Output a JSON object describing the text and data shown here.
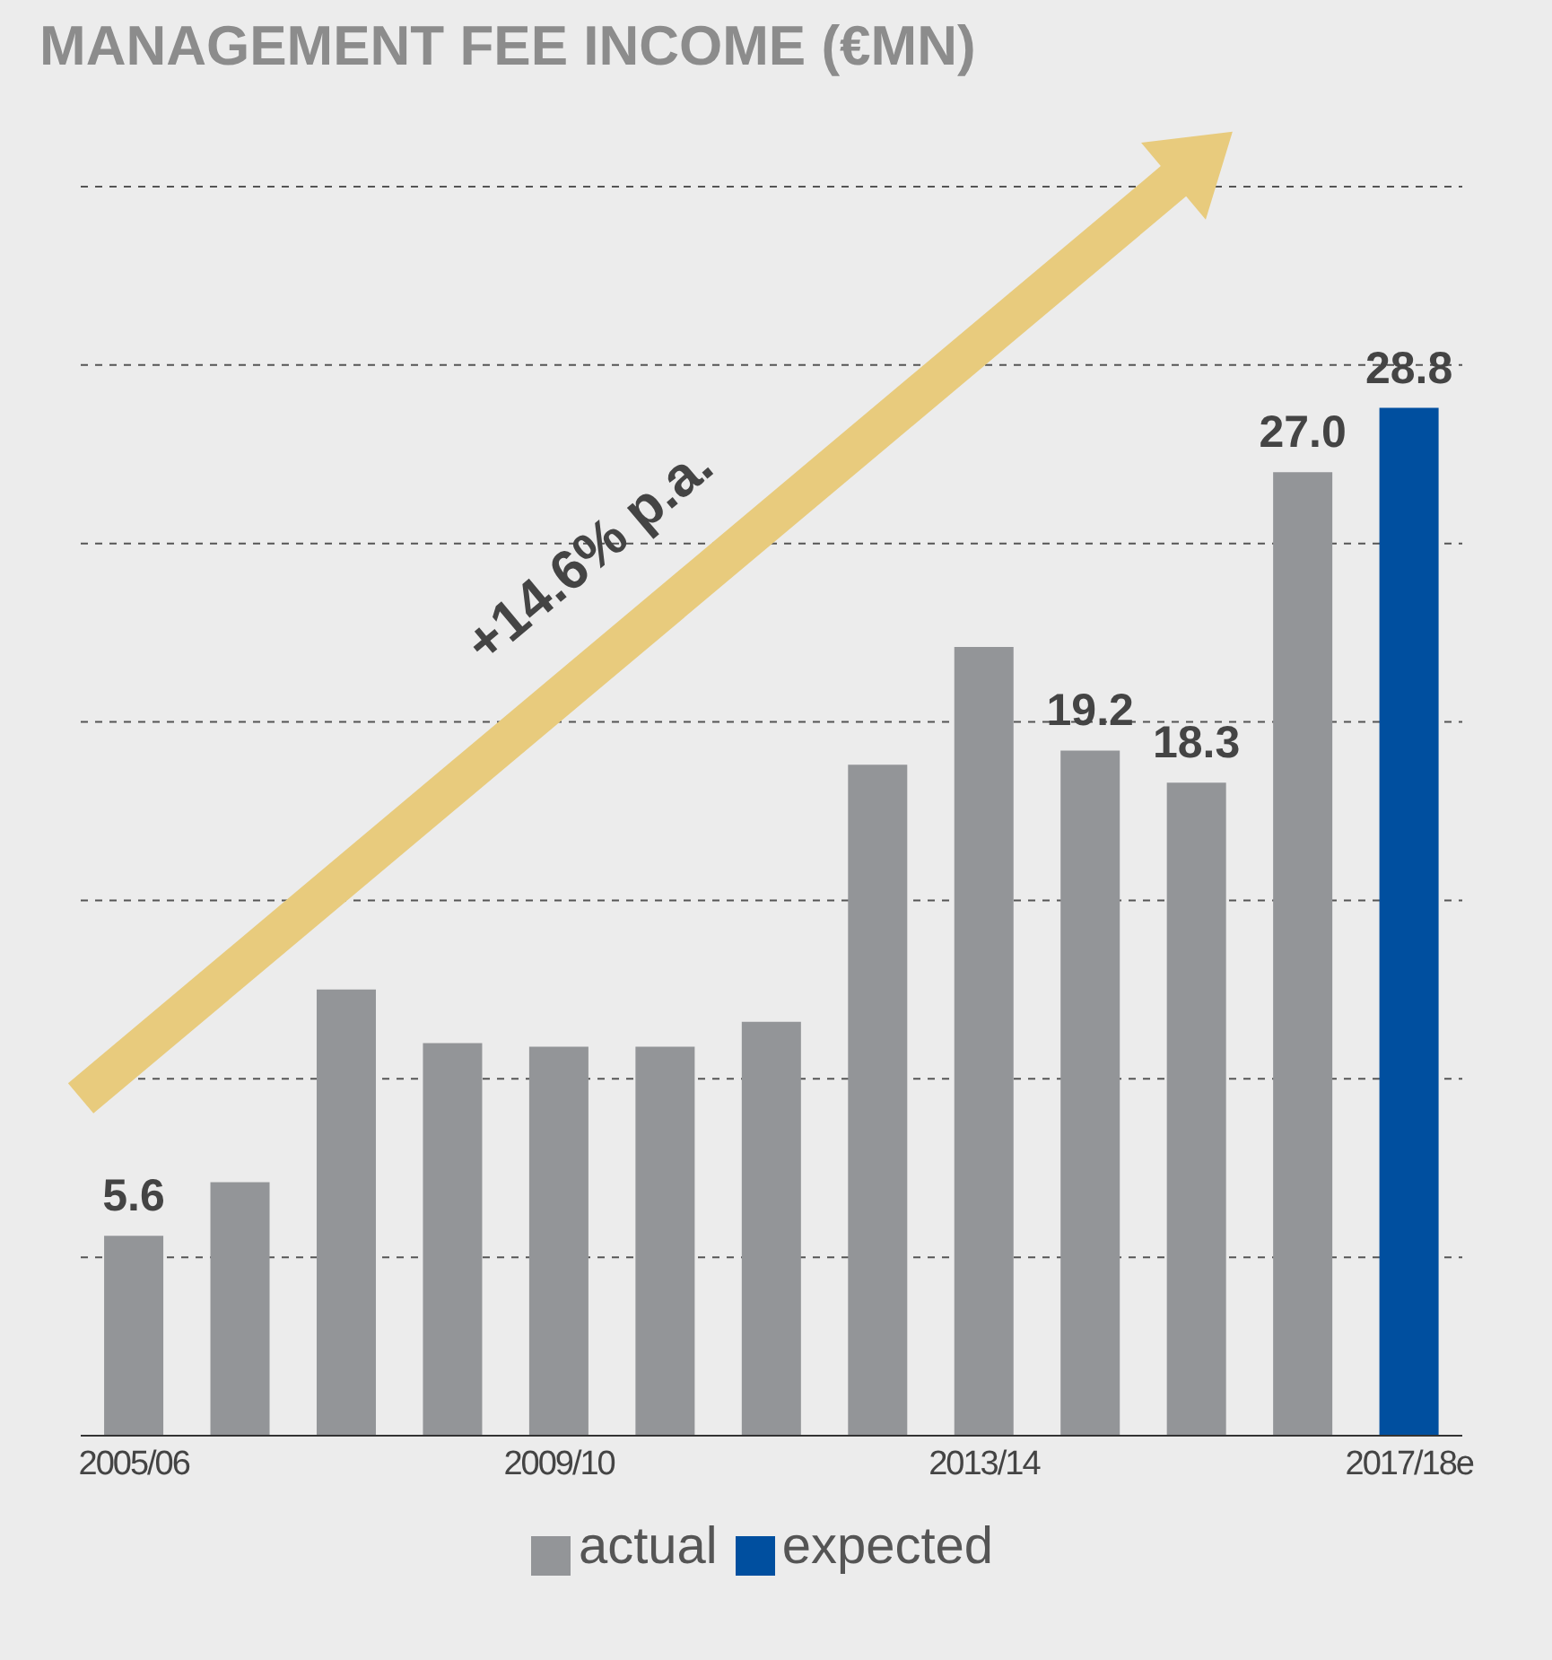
{
  "chart_data": {
    "type": "bar",
    "title": "MANAGEMENT FEE INCOME (€MN)",
    "categories": [
      "2005/06",
      null,
      null,
      null,
      "2009/10",
      null,
      null,
      null,
      "2013/14",
      null,
      null,
      null,
      "2017/18e"
    ],
    "series": [
      {
        "name": "actual",
        "color": "#939598",
        "values": [
          5.6,
          7.1,
          12.5,
          11.0,
          10.9,
          10.9,
          11.6,
          18.8,
          22.1,
          19.2,
          18.3,
          27.0,
          null
        ],
        "value_labels": [
          "5.6",
          null,
          null,
          null,
          null,
          null,
          null,
          null,
          null,
          "19.2",
          "18.3",
          "27.0",
          null
        ]
      },
      {
        "name": "expected",
        "color": "#004f9f",
        "values": [
          null,
          null,
          null,
          null,
          null,
          null,
          null,
          null,
          null,
          null,
          null,
          null,
          28.8
        ],
        "value_labels": [
          null,
          null,
          null,
          null,
          null,
          null,
          null,
          null,
          null,
          null,
          null,
          null,
          "28.8"
        ]
      }
    ],
    "stacked": true,
    "ylim": [
      0,
      35
    ],
    "yticks": [
      {
        "value": 5,
        "label": null
      },
      {
        "value": 10,
        "label": null
      },
      {
        "value": 15,
        "label": null
      },
      {
        "value": 20,
        "label": null
      },
      {
        "value": 25,
        "label": null
      },
      {
        "value": 30,
        "label": null
      },
      {
        "value": 35,
        "label": null
      }
    ],
    "tick_labels": "x",
    "grid": "y",
    "legend": "bottom",
    "annotations": [
      "+14.6% p.a."
    ]
  }
}
